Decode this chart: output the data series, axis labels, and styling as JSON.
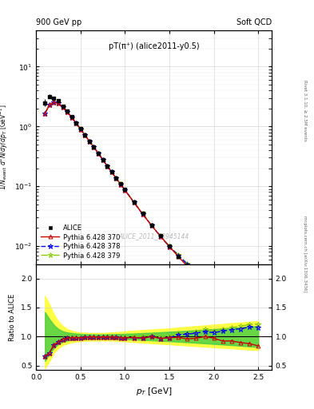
{
  "title_top_left": "900 GeV pp",
  "title_top_right": "Soft QCD",
  "plot_title": "pT(π⁺) (alice2011-y0.5)",
  "ylabel_main": "1/N_{event} d²N/dy/dp_{T} [GeV⁻¹]",
  "ylabel_ratio": "Ratio to ALICE",
  "watermark": "ALICE_2011_S8945144",
  "right_label_top": "Rivet 3.1.10, ≥ 2.5M events",
  "right_label_bottom": "mcplots.cern.ch [arXiv:1306.3436]",
  "xlim": [
    0.0,
    2.65
  ],
  "ylim_main_log": [
    0.005,
    40
  ],
  "ylim_ratio": [
    0.42,
    2.25
  ],
  "bg_color": "#ffffff",
  "alice_color": "#000000",
  "pythia370_color": "#cc0000",
  "pythia378_color": "#0000ee",
  "pythia379_color": "#88cc00",
  "band_color_yellow": "#ffff44",
  "band_color_green": "#44cc44",
  "alice_pt": [
    0.1,
    0.15,
    0.2,
    0.25,
    0.3,
    0.35,
    0.4,
    0.45,
    0.5,
    0.55,
    0.6,
    0.65,
    0.7,
    0.75,
    0.8,
    0.85,
    0.9,
    0.95,
    1.0,
    1.1,
    1.2,
    1.3,
    1.4,
    1.5,
    1.6,
    1.7,
    1.8,
    1.9,
    2.0,
    2.1,
    2.2,
    2.3,
    2.4,
    2.5
  ],
  "alice_y": [
    2.5,
    3.2,
    3.0,
    2.7,
    2.2,
    1.8,
    1.45,
    1.15,
    0.92,
    0.72,
    0.57,
    0.45,
    0.36,
    0.28,
    0.22,
    0.175,
    0.138,
    0.11,
    0.088,
    0.055,
    0.035,
    0.022,
    0.015,
    0.01,
    0.0068,
    0.0048,
    0.0034,
    0.0024,
    0.0018,
    0.00128,
    0.00092,
    0.00067,
    0.00049,
    0.00037
  ],
  "alice_yerr": [
    0.35,
    0.25,
    0.18,
    0.14,
    0.11,
    0.09,
    0.07,
    0.055,
    0.044,
    0.034,
    0.027,
    0.021,
    0.017,
    0.013,
    0.01,
    0.008,
    0.006,
    0.005,
    0.004,
    0.0025,
    0.0016,
    0.001,
    0.0007,
    0.0005,
    0.00035,
    0.00025,
    0.00018,
    0.00013,
    0.0001,
    7e-05,
    5e-05,
    4e-05,
    3e-05,
    2.5e-05
  ],
  "p370_y": [
    1.65,
    2.3,
    2.55,
    2.45,
    2.1,
    1.75,
    1.42,
    1.13,
    0.9,
    0.71,
    0.565,
    0.448,
    0.355,
    0.278,
    0.218,
    0.173,
    0.136,
    0.108,
    0.086,
    0.054,
    0.034,
    0.022,
    0.0145,
    0.0098,
    0.0067,
    0.0046,
    0.0033,
    0.0024,
    0.00175,
    0.00118,
    0.00085,
    0.0006,
    0.00043,
    0.00031
  ],
  "p378_y": [
    1.65,
    2.3,
    2.55,
    2.45,
    2.1,
    1.75,
    1.42,
    1.13,
    0.9,
    0.71,
    0.565,
    0.448,
    0.355,
    0.278,
    0.218,
    0.173,
    0.136,
    0.108,
    0.086,
    0.054,
    0.034,
    0.022,
    0.0145,
    0.0098,
    0.007,
    0.005,
    0.0036,
    0.0026,
    0.00192,
    0.0014,
    0.00103,
    0.00076,
    0.00057,
    0.00043
  ],
  "p379_y": [
    1.65,
    2.3,
    2.56,
    2.46,
    2.11,
    1.76,
    1.43,
    1.14,
    0.91,
    0.715,
    0.568,
    0.45,
    0.357,
    0.28,
    0.22,
    0.175,
    0.137,
    0.109,
    0.087,
    0.055,
    0.035,
    0.0225,
    0.0148,
    0.01,
    0.0072,
    0.0051,
    0.0037,
    0.0027,
    0.00198,
    0.00145,
    0.00106,
    0.00079,
    0.00059,
    0.00045
  ],
  "ratio_band_yellow_lo": [
    0.45,
    0.58,
    0.72,
    0.8,
    0.85,
    0.88,
    0.9,
    0.91,
    0.92,
    0.925,
    0.93,
    0.93,
    0.93,
    0.93,
    0.93,
    0.93,
    0.925,
    0.92,
    0.915,
    0.905,
    0.895,
    0.885,
    0.875,
    0.865,
    0.855,
    0.845,
    0.835,
    0.825,
    0.815,
    0.805,
    0.795,
    0.785,
    0.775,
    0.765
  ],
  "ratio_band_yellow_hi": [
    1.7,
    1.55,
    1.38,
    1.26,
    1.18,
    1.13,
    1.1,
    1.08,
    1.07,
    1.065,
    1.06,
    1.06,
    1.06,
    1.06,
    1.065,
    1.07,
    1.075,
    1.08,
    1.09,
    1.1,
    1.11,
    1.12,
    1.13,
    1.14,
    1.155,
    1.165,
    1.18,
    1.19,
    1.205,
    1.215,
    1.23,
    1.24,
    1.255,
    1.265
  ],
  "ratio_band_green_lo": [
    0.58,
    0.7,
    0.8,
    0.87,
    0.91,
    0.93,
    0.94,
    0.95,
    0.955,
    0.96,
    0.962,
    0.963,
    0.963,
    0.963,
    0.962,
    0.961,
    0.959,
    0.957,
    0.954,
    0.948,
    0.941,
    0.934,
    0.926,
    0.918,
    0.91,
    0.901,
    0.892,
    0.882,
    0.872,
    0.862,
    0.851,
    0.84,
    0.829,
    0.818
  ],
  "ratio_band_green_hi": [
    1.42,
    1.3,
    1.2,
    1.13,
    1.09,
    1.07,
    1.06,
    1.05,
    1.045,
    1.04,
    1.038,
    1.037,
    1.037,
    1.037,
    1.038,
    1.039,
    1.041,
    1.043,
    1.046,
    1.052,
    1.059,
    1.066,
    1.074,
    1.082,
    1.09,
    1.099,
    1.108,
    1.118,
    1.128,
    1.138,
    1.149,
    1.16,
    1.171,
    1.182
  ]
}
